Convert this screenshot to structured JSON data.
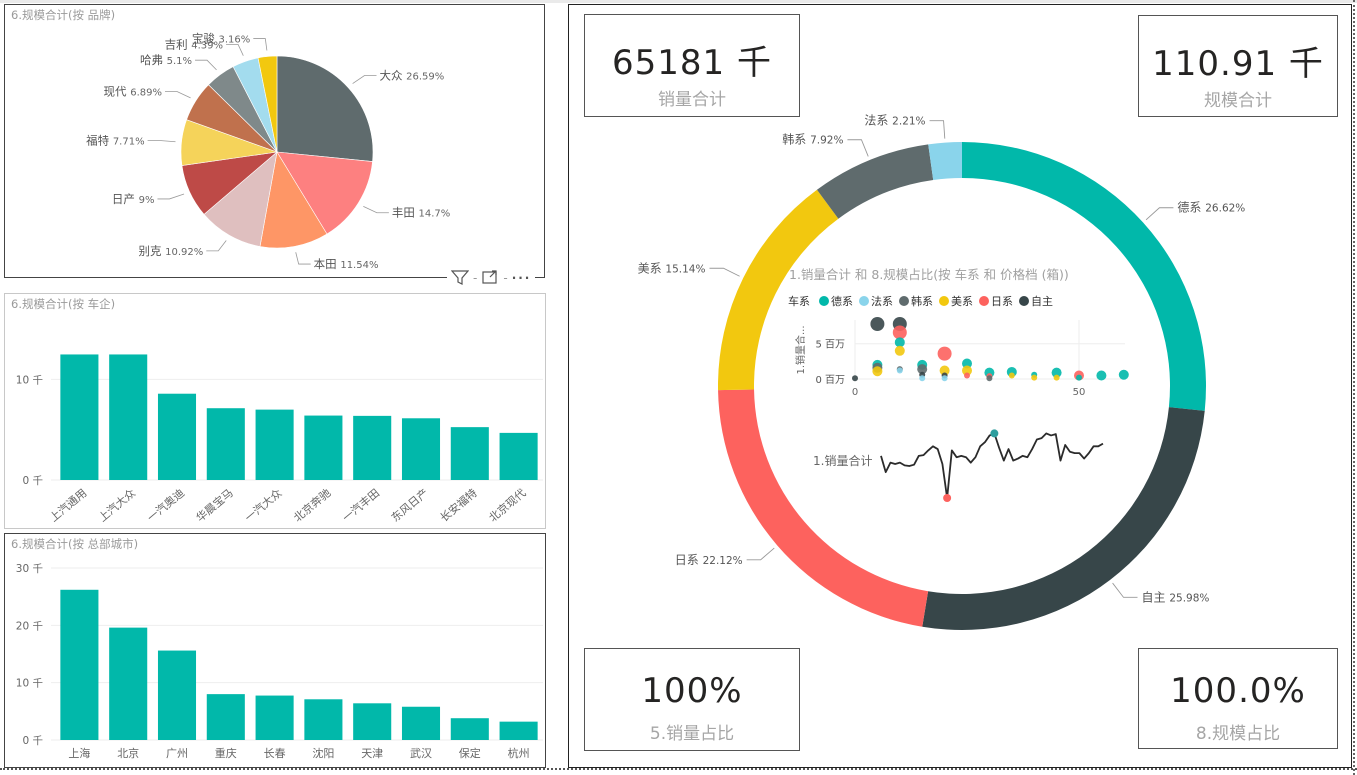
{
  "colors": {
    "teal": "#01B8AA",
    "dark_gray": "#5F6B6D",
    "light_blue": "#8AD4EB",
    "yellow": "#F2C80F",
    "red": "#FD625E",
    "dark_slate": "#374649",
    "salmon": "#FE8074",
    "orange": "#FE9666",
    "pink": "#DFBFBF",
    "brick": "#BE4A47",
    "sand": "#F5D33F",
    "brown": "#C0714D",
    "gray": "#7F898A"
  },
  "visual_toolbar": {
    "filter_icon": "filter-icon",
    "focus_icon": "focus-mode-icon",
    "more_icon": "more-options-icon"
  },
  "pie_brand": {
    "title": "6.规模合计(按 品牌)",
    "chart_data": {
      "type": "pie",
      "title": "6.规模合计(按 品牌)",
      "slices": [
        {
          "label": "大众",
          "value": 26.59,
          "display": "26.59%",
          "color": "#5F6B6D"
        },
        {
          "label": "丰田",
          "value": 14.7,
          "display": "14.7%",
          "color": "#FD8080"
        },
        {
          "label": "本田",
          "value": 11.54,
          "display": "11.54%",
          "color": "#FE9666"
        },
        {
          "label": "别克",
          "value": 10.92,
          "display": "10.92%",
          "color": "#DFBFBF"
        },
        {
          "label": "日产",
          "value": 9,
          "display": "9%",
          "color": "#BE4A47"
        },
        {
          "label": "福特",
          "value": 7.71,
          "display": "7.71%",
          "color": "#F5D35A"
        },
        {
          "label": "现代",
          "value": 6.89,
          "display": "6.89%",
          "color": "#C0714D"
        },
        {
          "label": "哈弗",
          "value": 5.1,
          "display": "5.1%",
          "color": "#7F898A"
        },
        {
          "label": "吉利",
          "value": 4.39,
          "display": "4.39%",
          "color": "#A3DCEE"
        },
        {
          "label": "宝骏",
          "value": 3.16,
          "display": "3.16%",
          "color": "#F2C80F"
        }
      ]
    }
  },
  "bar_company": {
    "title": "6.规模合计(按 车企)",
    "chart_data": {
      "type": "bar",
      "title": "6.规模合计(按 车企)",
      "categories": [
        "上汽通用",
        "上汽大众",
        "一汽奥迪",
        "华晨宝马",
        "一汽大众",
        "北京奔驰",
        "一汽丰田",
        "东风日产",
        "长安福特",
        "北京现代"
      ],
      "values": [
        12.47,
        12.47,
        8.57,
        7.13,
        6.99,
        6.4,
        6.37,
        6.13,
        5.25,
        4.68
      ],
      "yticks": [
        {
          "v": 0,
          "label": "0 千"
        },
        {
          "v": 10,
          "label": "10 千"
        }
      ],
      "ylim": [
        0,
        14.7
      ],
      "ylabel": "",
      "xlabel": "",
      "grid": true,
      "color": "#01B8AA",
      "unit": "千"
    }
  },
  "bar_city": {
    "title": "6.规模合计(按 总部城市)",
    "chart_data": {
      "type": "bar",
      "title": "6.规模合计(按 总部城市)",
      "categories": [
        "上海",
        "北京",
        "广州",
        "重庆",
        "长春",
        "沈阳",
        "天津",
        "武汉",
        "保定",
        "杭州"
      ],
      "values": [
        26.2,
        19.6,
        15.6,
        8.0,
        7.75,
        7.1,
        6.4,
        5.8,
        3.8,
        3.2
      ],
      "yticks": [
        {
          "v": 0,
          "label": "0 千"
        },
        {
          "v": 10,
          "label": "10 千"
        },
        {
          "v": 20,
          "label": "20 千"
        },
        {
          "v": 30,
          "label": "30 千"
        }
      ],
      "ylim": [
        0,
        30
      ],
      "ylabel": "",
      "xlabel": "",
      "grid": true,
      "color": "#01B8AA",
      "unit": "千"
    }
  },
  "cards": {
    "sales_total": {
      "value": "65181 千",
      "label": "销量合计"
    },
    "scale_total": {
      "value": "110.91 千",
      "label": "规模合计"
    },
    "sales_share": {
      "value": "100%",
      "label": "5.销量占比"
    },
    "scale_share": {
      "value": "100.0%",
      "label": "8.规模占比"
    }
  },
  "donut_series": {
    "chart_data": {
      "type": "pie",
      "subtype": "donut",
      "slices": [
        {
          "label": "德系",
          "value": 26.62,
          "display": "26.62%",
          "color": "#01B8AA"
        },
        {
          "label": "自主",
          "value": 25.98,
          "display": "25.98%",
          "color": "#374649"
        },
        {
          "label": "日系",
          "value": 22.12,
          "display": "22.12%",
          "color": "#FD625E"
        },
        {
          "label": "美系",
          "value": 15.14,
          "display": "15.14%",
          "color": "#F2C80F"
        },
        {
          "label": "韩系",
          "value": 7.92,
          "display": "7.92%",
          "color": "#5F6B6D"
        },
        {
          "label": "法系",
          "value": 2.21,
          "display": "2.21%",
          "color": "#8AD4EB"
        }
      ]
    }
  },
  "scatter": {
    "title": "1.销量合计 和 8.规模占比(按 车系 和 价格档 (箱))",
    "legend_title": "车系",
    "legend": [
      {
        "label": "德系",
        "color": "#01B8AA"
      },
      {
        "label": "法系",
        "color": "#8AD4EB"
      },
      {
        "label": "韩系",
        "color": "#5F6B6D"
      },
      {
        "label": "美系",
        "color": "#F2C80F"
      },
      {
        "label": "日系",
        "color": "#FD625E"
      },
      {
        "label": "自主",
        "color": "#374649"
      }
    ],
    "ylabel": "1.销量合...",
    "chart_data": {
      "type": "scatter",
      "title": "1.销量合计 和 8.规模占比(按 车系 和 价格档 (箱))",
      "xlim": [
        0,
        60
      ],
      "ylim": [
        0,
        7.8
      ],
      "xticks": [
        {
          "v": 0,
          "label": "0"
        },
        {
          "v": 50,
          "label": "50"
        }
      ],
      "yticks": [
        {
          "v": 0,
          "label": "0 百万"
        },
        {
          "v": 5,
          "label": "5 百万"
        }
      ],
      "points": [
        {
          "s": "自主",
          "x": 0,
          "y": 0.1,
          "r": 1
        },
        {
          "s": "自主",
          "x": 5,
          "y": 7.8,
          "r": 3
        },
        {
          "s": "德系",
          "x": 5,
          "y": 2.0,
          "r": 2
        },
        {
          "s": "韩系",
          "x": 5,
          "y": 1.6,
          "r": 2
        },
        {
          "s": "美系",
          "x": 5,
          "y": 1.1,
          "r": 2
        },
        {
          "s": "自主",
          "x": 10,
          "y": 7.8,
          "r": 3
        },
        {
          "s": "日系",
          "x": 10,
          "y": 6.6,
          "r": 3
        },
        {
          "s": "德系",
          "x": 10,
          "y": 5.2,
          "r": 2
        },
        {
          "s": "美系",
          "x": 10,
          "y": 4.0,
          "r": 2
        },
        {
          "s": "韩系",
          "x": 10,
          "y": 1.4,
          "r": 1
        },
        {
          "s": "法系",
          "x": 10,
          "y": 1.2,
          "r": 1
        },
        {
          "s": "德系",
          "x": 15,
          "y": 2.0,
          "r": 2
        },
        {
          "s": "韩系",
          "x": 15,
          "y": 1.4,
          "r": 2
        },
        {
          "s": "自主",
          "x": 15,
          "y": 0.6,
          "r": 1
        },
        {
          "s": "法系",
          "x": 15,
          "y": 0.1,
          "r": 1
        },
        {
          "s": "日系",
          "x": 20,
          "y": 3.6,
          "r": 3
        },
        {
          "s": "美系",
          "x": 20,
          "y": 1.2,
          "r": 2
        },
        {
          "s": "自主",
          "x": 20,
          "y": 0.5,
          "r": 1
        },
        {
          "s": "法系",
          "x": 20,
          "y": 0.1,
          "r": 1
        },
        {
          "s": "德系",
          "x": 25,
          "y": 2.2,
          "r": 2
        },
        {
          "s": "美系",
          "x": 25,
          "y": 1.2,
          "r": 2
        },
        {
          "s": "日系",
          "x": 25,
          "y": 0.5,
          "r": 1
        },
        {
          "s": "德系",
          "x": 30,
          "y": 0.9,
          "r": 2
        },
        {
          "s": "日系",
          "x": 30,
          "y": 0.4,
          "r": 1
        },
        {
          "s": "韩系",
          "x": 30,
          "y": 0.1,
          "r": 1
        },
        {
          "s": "德系",
          "x": 35,
          "y": 1.0,
          "r": 2
        },
        {
          "s": "美系",
          "x": 35,
          "y": 0.5,
          "r": 1
        },
        {
          "s": "德系",
          "x": 40,
          "y": 0.6,
          "r": 1
        },
        {
          "s": "美系",
          "x": 40,
          "y": 0.2,
          "r": 1
        },
        {
          "s": "德系",
          "x": 45,
          "y": 0.9,
          "r": 2
        },
        {
          "s": "美系",
          "x": 45,
          "y": 0.2,
          "r": 1
        },
        {
          "s": "日系",
          "x": 50,
          "y": 0.5,
          "r": 2
        },
        {
          "s": "德系",
          "x": 50,
          "y": 0.2,
          "r": 1
        },
        {
          "s": "德系",
          "x": 55,
          "y": 0.5,
          "r": 2
        },
        {
          "s": "德系",
          "x": 60,
          "y": 0.6,
          "r": 2
        }
      ]
    }
  },
  "sparkline": {
    "label": "1.销量合计",
    "chart_data": {
      "type": "line",
      "values": [
        0.62,
        0.38,
        0.52,
        0.5,
        0.52,
        0.48,
        0.47,
        0.49,
        0.62,
        0.63,
        0.7,
        0.76,
        0.72,
        0.5,
        0.0,
        0.7,
        0.6,
        0.62,
        0.6,
        0.52,
        0.6,
        0.76,
        0.82,
        0.92,
        0.95,
        0.74,
        0.55,
        0.72,
        0.55,
        0.58,
        0.62,
        0.6,
        0.72,
        0.86,
        0.88,
        0.95,
        0.92,
        0.94,
        0.55,
        0.78,
        0.68,
        0.66,
        0.66,
        0.58,
        0.66,
        0.76,
        0.76,
        0.8
      ],
      "min_index": 14,
      "max_index": 24,
      "min_color": "#FD625E",
      "max_color": "#2E9E9E"
    }
  }
}
